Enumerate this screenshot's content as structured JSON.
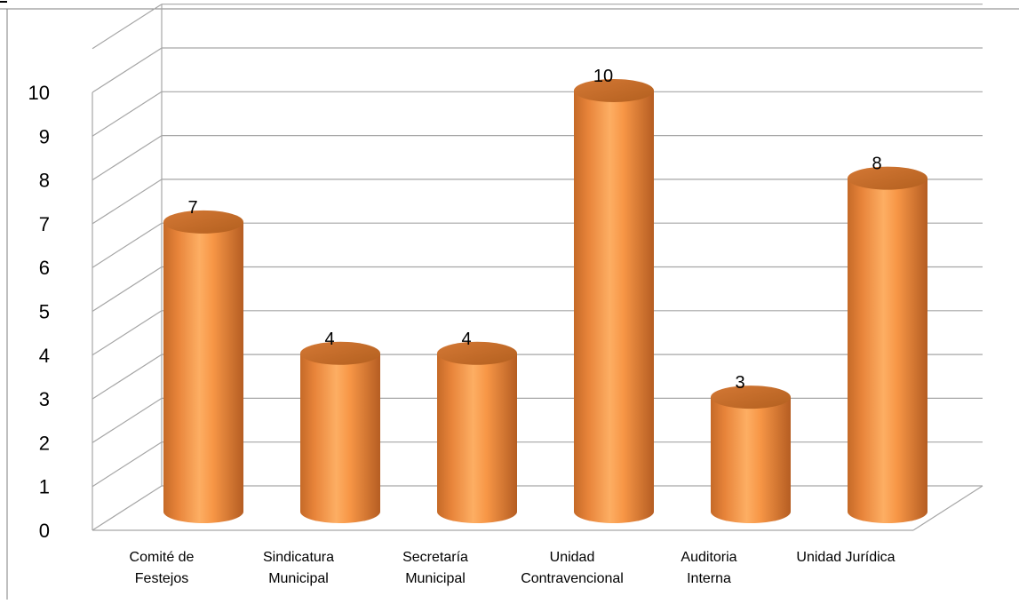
{
  "chart_data": {
    "type": "bar",
    "style": "3d-cylinder",
    "categories": [
      [
        "Comité de",
        "Festejos"
      ],
      [
        "Sindicatura",
        "Municipal"
      ],
      [
        "Secretaría",
        "Municipal"
      ],
      [
        "Unidad",
        "Contravencional"
      ],
      [
        "Auditoria",
        "Interna"
      ],
      [
        "Unidad Jurídica"
      ]
    ],
    "values": [
      7,
      4,
      4,
      10,
      3,
      8
    ],
    "data_labels": [
      "7",
      "4",
      "4",
      "10",
      "3",
      "8"
    ],
    "ylim": [
      0,
      10
    ],
    "yticks": [
      "0",
      "1",
      "2",
      "3",
      "4",
      "5",
      "6",
      "7",
      "8",
      "9",
      "10"
    ],
    "grid": true,
    "colors": {
      "bar": "#F79646",
      "bar_dark": "#B9652A",
      "bar_light": "#FDBA7A",
      "grid": "#A6A6A6"
    }
  }
}
